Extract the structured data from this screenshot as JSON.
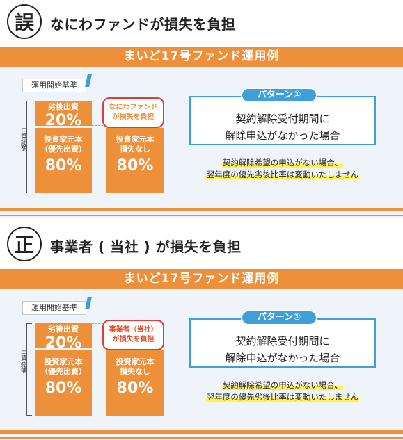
{
  "wrong": {
    "badge": "誤",
    "heading": "なにわファンドが損失を負担",
    "banner": "まいど17号ファンド運用例",
    "standard_label": "運用開始基準",
    "axis_label": "出資総額",
    "subordinate": {
      "label": "劣後出資",
      "percent": "20%"
    },
    "preferred": {
      "label_line1": "投資家元本",
      "label_line2": "（優先出資）",
      "percent": "80%"
    },
    "no_loss": {
      "label_line1": "投資家元本",
      "label_line2": "損失なし",
      "percent": "80%"
    },
    "callout": {
      "line1": "なにわファンド",
      "line2": "が損失を負担"
    },
    "pattern_tag": "パターン①",
    "pattern_text": {
      "line1": "契約解除受付期間に",
      "line2": "解除申込がなかった場合"
    },
    "note": {
      "line1": "契約解除希望の申込がない場合、",
      "line2": "翌年度の優先劣後比率は変動いたしません"
    }
  },
  "correct": {
    "badge": "正",
    "heading": "事業者 ( 当社 ) が損失を負担",
    "banner": "まいど17号ファンド運用例",
    "standard_label": "運用開始基準",
    "axis_label": "出資総額",
    "subordinate": {
      "label": "劣後出資",
      "percent": "20%"
    },
    "preferred": {
      "label_line1": "投資家元本",
      "label_line2": "（優先出資）",
      "percent": "80%"
    },
    "no_loss": {
      "label_line1": "投資家元本",
      "label_line2": "損失なし",
      "percent": "80%"
    },
    "callout": {
      "line1": "事業者（当社）",
      "line2": "が損失を負担"
    },
    "pattern_tag": "パターン①",
    "pattern_text": {
      "line1": "契約解除受付期間に",
      "line2": "解除申込がなかった場合"
    },
    "note": {
      "line1": "契約解除希望の申込がない場合、",
      "line2": "翌年度の優先劣後比率は変動いたしません"
    }
  }
}
